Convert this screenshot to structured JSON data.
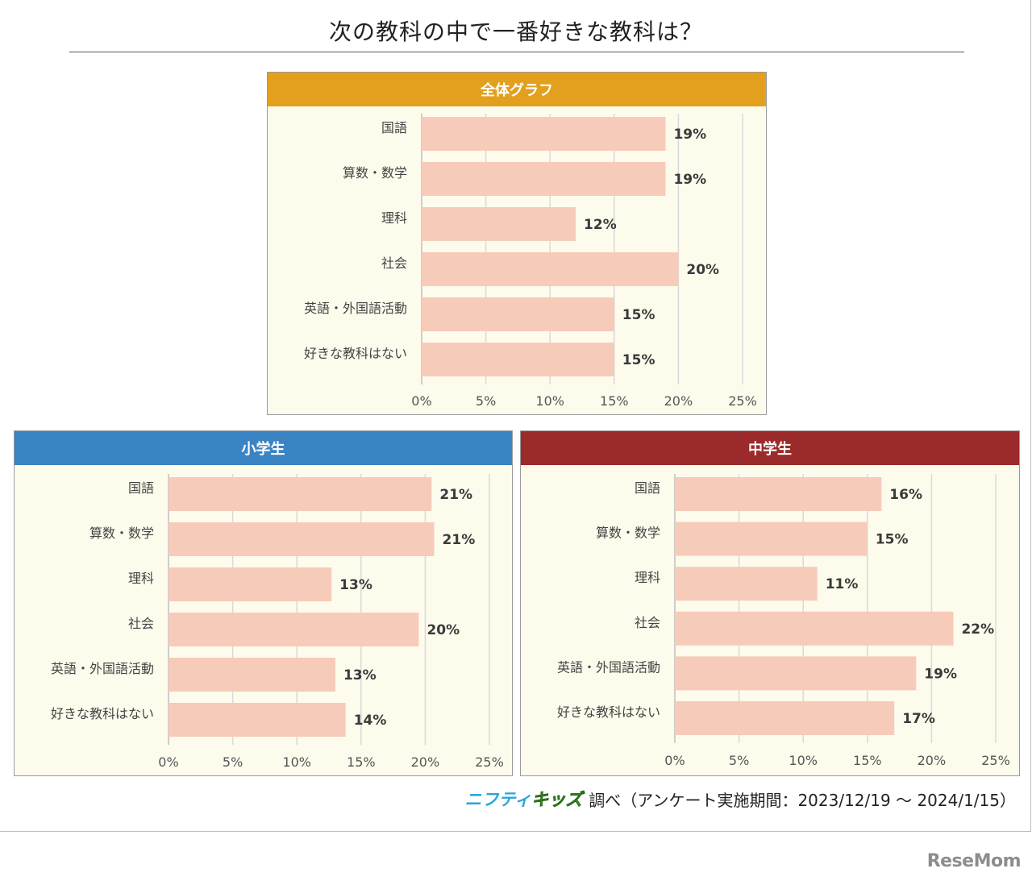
{
  "title": "次の教科の中で一番好きな教科は？",
  "source": {
    "brand_part1": "ニフティ",
    "brand_part2": "キッズ",
    "text": "調べ（アンケート実施期間：2023/12/19 〜 2024/1/15）"
  },
  "watermark": "ReseMom",
  "colors": {
    "bar": "#f7cbb9",
    "overall_header": "#e2a01e",
    "elementary_header": "#3a84c4",
    "junior_header": "#9b2a2a",
    "panel_bg": "#fdfbec",
    "grid": "#d9d9d9"
  },
  "chart_data": [
    {
      "type": "bar",
      "orientation": "horizontal",
      "title": "全体グラフ",
      "categories": [
        "国語",
        "算数・数学",
        "理科",
        "社会",
        "英語・外国語活動",
        "好きな教科はない"
      ],
      "values": [
        19,
        19,
        12,
        20,
        15,
        15
      ],
      "value_labels": [
        "19%",
        "19%",
        "12%",
        "20%",
        "15%",
        "15%"
      ],
      "xticks": [
        "0%",
        "5%",
        "10%",
        "15%",
        "20%",
        "25%"
      ],
      "xlim": [
        0,
        25
      ],
      "grid": true
    },
    {
      "type": "bar",
      "orientation": "horizontal",
      "title": "小学生",
      "categories": [
        "国語",
        "算数・数学",
        "理科",
        "社会",
        "英語・外国語活動",
        "好きな教科はない"
      ],
      "values": [
        20.5,
        20.7,
        12.7,
        19.5,
        13,
        13.8
      ],
      "value_labels": [
        "21%",
        "21%",
        "13%",
        "20%",
        "13%",
        "14%"
      ],
      "xticks": [
        "0%",
        "5%",
        "10%",
        "15%",
        "20%",
        "25%"
      ],
      "xlim": [
        0,
        25
      ],
      "grid": true
    },
    {
      "type": "bar",
      "orientation": "horizontal",
      "title": "中学生",
      "categories": [
        "国語",
        "算数・数学",
        "理科",
        "社会",
        "英語・外国語活動",
        "好きな教科はない"
      ],
      "values": [
        16.1,
        15,
        11.1,
        21.7,
        18.8,
        17.1
      ],
      "value_labels": [
        "16%",
        "15%",
        "11%",
        "22%",
        "19%",
        "17%"
      ],
      "xticks": [
        "0%",
        "5%",
        "10%",
        "15%",
        "20%",
        "25%"
      ],
      "xlim": [
        0,
        25
      ],
      "grid": true
    }
  ]
}
